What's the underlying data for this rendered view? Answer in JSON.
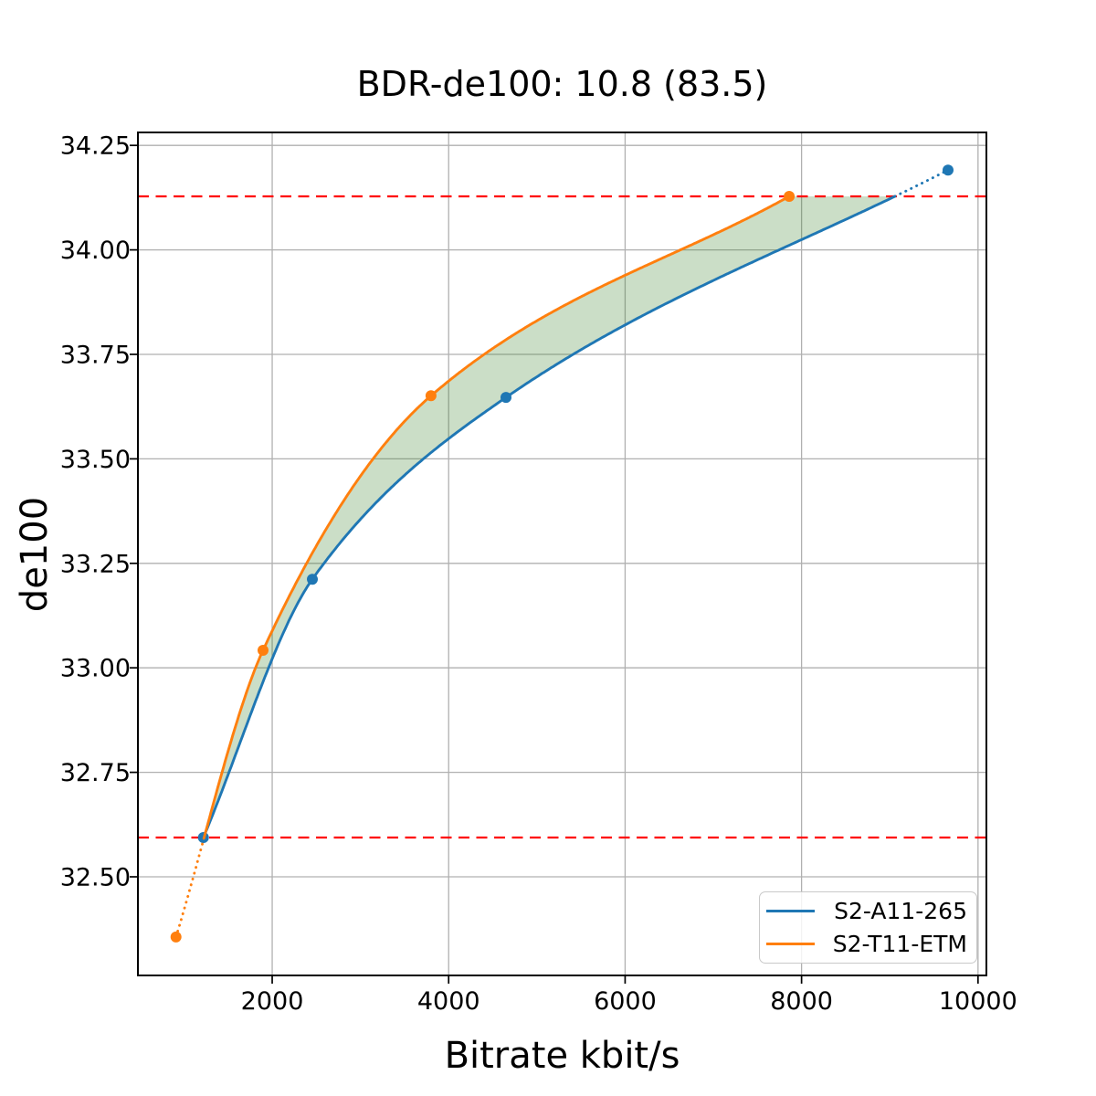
{
  "chart_data": {
    "type": "line",
    "title": "BDR-de100: 10.8 (83.5)",
    "xlabel": "Bitrate kbit/s",
    "ylabel": "de100",
    "xlim": [
      478,
      10095
    ],
    "ylim": [
      32.264,
      34.281
    ],
    "grid": true,
    "grid_color": "#b0b0b0",
    "xticks": {
      "values": [
        2000,
        4000,
        6000,
        8000,
        10000
      ],
      "labels": [
        "2000",
        "4000",
        "6000",
        "8000",
        "10000"
      ]
    },
    "yticks": {
      "values": [
        32.5,
        32.75,
        33.0,
        33.25,
        33.5,
        33.75,
        34.0,
        34.25
      ],
      "labels": [
        "32.50",
        "32.75",
        "33.00",
        "33.25",
        "33.50",
        "33.75",
        "34.00",
        "34.25"
      ]
    },
    "series": [
      {
        "name": "S2-A11-265",
        "color": "#1f77b4",
        "x": [
          1220,
          2455,
          4650,
          9660
        ],
        "y": [
          32.594,
          33.212,
          33.647,
          34.191
        ]
      },
      {
        "name": "S2-T11-ETM",
        "color": "#ff7f0e",
        "x": [
          910,
          1896,
          3800,
          7860
        ],
        "y": [
          32.356,
          33.042,
          33.651,
          34.128
        ]
      }
    ],
    "overlap_lines": {
      "style": "dashed",
      "color": "#ff0000",
      "lower": 32.594,
      "upper": 34.128
    },
    "fill_between": {
      "color": "#2e7d1e",
      "opacity": 0.25
    },
    "legend": {
      "position": "lower right"
    }
  }
}
